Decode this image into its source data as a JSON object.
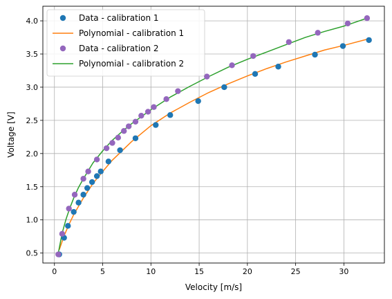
{
  "chart_data": {
    "type": "scatter",
    "xlabel": "Velocity [m/s]",
    "ylabel": "Voltage [V]",
    "xlim": [
      -1.2,
      34.2
    ],
    "ylim": [
      0.35,
      4.22
    ],
    "xticks": [
      0,
      5,
      10,
      15,
      20,
      25,
      30
    ],
    "yticks": [
      0.5,
      1.0,
      1.5,
      2.0,
      2.5,
      3.0,
      3.5,
      4.0
    ],
    "xtick_labels": [
      "0",
      "5",
      "10",
      "15",
      "20",
      "25",
      "30"
    ],
    "ytick_labels": [
      "0.5",
      "1.0",
      "1.5",
      "2.0",
      "2.5",
      "3.0",
      "3.5",
      "4.0"
    ],
    "grid": true,
    "legend_position": "top-left",
    "series": [
      {
        "name": "Data - calibration 1",
        "kind": "markers",
        "color": "#1f77b4",
        "x": [
          0.5,
          1.0,
          1.4,
          2.0,
          2.5,
          3.0,
          3.4,
          3.9,
          4.4,
          4.8,
          5.6,
          6.8,
          8.4,
          10.5,
          12.0,
          14.9,
          17.6,
          20.8,
          23.2,
          27.0,
          29.9,
          32.6
        ],
        "y": [
          0.48,
          0.73,
          0.91,
          1.12,
          1.26,
          1.38,
          1.48,
          1.57,
          1.66,
          1.73,
          1.88,
          2.05,
          2.23,
          2.43,
          2.58,
          2.79,
          3.0,
          3.2,
          3.31,
          3.49,
          3.62,
          3.71
        ]
      },
      {
        "name": "Polynomial - calibration 1",
        "kind": "line",
        "color": "#ff7f0e",
        "x": [
          0.5,
          1.0,
          1.5,
          2.0,
          3.0,
          4.0,
          5.0,
          6.0,
          8.0,
          10.0,
          12.0,
          14.0,
          16.0,
          18.0,
          20.0,
          22.0,
          24.0,
          26.0,
          28.0,
          30.0,
          32.6
        ],
        "y": [
          0.55,
          0.76,
          0.93,
          1.08,
          1.33,
          1.55,
          1.73,
          1.9,
          2.18,
          2.42,
          2.61,
          2.77,
          2.92,
          3.05,
          3.17,
          3.28,
          3.38,
          3.47,
          3.56,
          3.63,
          3.73
        ]
      },
      {
        "name": "Data - calibration 2",
        "kind": "markers",
        "color": "#9467bd",
        "x": [
          0.4,
          0.8,
          1.5,
          2.1,
          3.0,
          3.5,
          4.4,
          5.4,
          6.0,
          6.6,
          7.2,
          7.7,
          8.4,
          9.0,
          9.7,
          10.3,
          11.6,
          12.8,
          15.8,
          18.4,
          20.6,
          24.3,
          27.3,
          30.4,
          32.4
        ],
        "y": [
          0.48,
          0.79,
          1.17,
          1.38,
          1.62,
          1.73,
          1.91,
          2.08,
          2.16,
          2.24,
          2.34,
          2.41,
          2.48,
          2.57,
          2.63,
          2.7,
          2.82,
          2.94,
          3.16,
          3.33,
          3.47,
          3.68,
          3.82,
          3.96,
          4.04
        ]
      },
      {
        "name": "Polynomial - calibration 2",
        "kind": "line",
        "color": "#2ca02c",
        "x": [
          0.4,
          0.8,
          1.2,
          1.6,
          2.0,
          2.5,
          3.0,
          4.0,
          5.0,
          6.0,
          7.0,
          8.0,
          10.0,
          12.0,
          14.0,
          16.0,
          18.0,
          20.0,
          22.0,
          24.0,
          26.0,
          28.0,
          30.0,
          32.4
        ],
        "y": [
          0.5,
          0.8,
          1.01,
          1.18,
          1.33,
          1.49,
          1.62,
          1.86,
          2.04,
          2.2,
          2.33,
          2.45,
          2.66,
          2.85,
          3.01,
          3.16,
          3.3,
          3.42,
          3.53,
          3.64,
          3.75,
          3.84,
          3.92,
          4.04
        ]
      }
    ]
  }
}
